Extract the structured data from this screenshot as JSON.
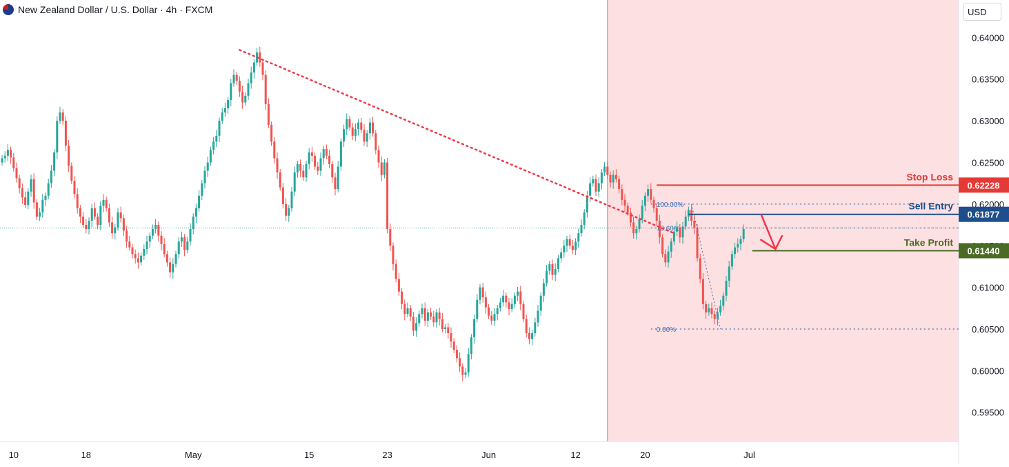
{
  "header": {
    "title": "New Zealand Dollar / U.S. Dollar · 4h · FXCM",
    "currency": "USD"
  },
  "colors": {
    "up": "#26a69a",
    "down": "#ef5350",
    "stop_loss": "#e53935",
    "sell_entry": "#1e4f8c",
    "take_profit": "#4a6b23",
    "trendline": "#f23645",
    "fib": "#3d6fb5",
    "future_zone": "#fde0e2"
  },
  "chart_data": {
    "type": "candlestick",
    "title": "New Zealand Dollar / U.S. Dollar · 4h · FXCM",
    "xlabel": "",
    "ylabel": "USD",
    "ylim": [
      0.5915,
      0.6445
    ],
    "y_ticks": [
      "0.64000",
      "0.63500",
      "0.63000",
      "0.62500",
      "0.62000",
      "0.61500",
      "0.61000",
      "0.60500",
      "0.60000",
      "0.59500"
    ],
    "x_ticks": [
      {
        "label": "10",
        "bar": 4
      },
      {
        "label": "18",
        "bar": 29
      },
      {
        "label": "May",
        "bar": 66
      },
      {
        "label": "15",
        "bar": 106
      },
      {
        "label": "23",
        "bar": 133
      },
      {
        "label": "Jun",
        "bar": 168
      },
      {
        "label": "12",
        "bar": 198
      },
      {
        "label": "20",
        "bar": 222
      },
      {
        "label": "Jul",
        "bar": 258
      }
    ],
    "closes": [
      0.6255,
      0.6258,
      0.6265,
      0.6256,
      0.6243,
      0.6231,
      0.6219,
      0.6208,
      0.6199,
      0.6215,
      0.623,
      0.6202,
      0.6185,
      0.619,
      0.6205,
      0.621,
      0.6225,
      0.624,
      0.6262,
      0.63,
      0.631,
      0.63,
      0.627,
      0.6246,
      0.6228,
      0.6212,
      0.6195,
      0.6185,
      0.6175,
      0.617,
      0.618,
      0.6195,
      0.6185,
      0.6175,
      0.6198,
      0.6205,
      0.6195,
      0.6178,
      0.6165,
      0.6172,
      0.619,
      0.6183,
      0.6168,
      0.6155,
      0.6148,
      0.614,
      0.6135,
      0.613,
      0.6138,
      0.6146,
      0.6155,
      0.6162,
      0.617,
      0.6175,
      0.6162,
      0.6152,
      0.614,
      0.613,
      0.6118,
      0.6128,
      0.614,
      0.6155,
      0.616,
      0.6145,
      0.6155,
      0.617,
      0.6185,
      0.6195,
      0.621,
      0.6225,
      0.624,
      0.625,
      0.6265,
      0.6275,
      0.6282,
      0.63,
      0.631,
      0.6315,
      0.6325,
      0.6345,
      0.6355,
      0.6348,
      0.6335,
      0.6322,
      0.633,
      0.6345,
      0.6358,
      0.637,
      0.6382,
      0.637,
      0.6355,
      0.632,
      0.6295,
      0.6275,
      0.6255,
      0.6238,
      0.622,
      0.62,
      0.6186,
      0.6195,
      0.6215,
      0.6238,
      0.6248,
      0.624,
      0.6232,
      0.6248,
      0.6262,
      0.6258,
      0.6245,
      0.624,
      0.6255,
      0.6266,
      0.6258,
      0.6248,
      0.6232,
      0.6218,
      0.6245,
      0.6275,
      0.629,
      0.6302,
      0.6292,
      0.6282,
      0.629,
      0.6298,
      0.6289,
      0.6275,
      0.6285,
      0.6298,
      0.6285,
      0.6265,
      0.625,
      0.6235,
      0.625,
      0.617,
      0.615,
      0.6128,
      0.611,
      0.6095,
      0.608,
      0.6068,
      0.6075,
      0.6065,
      0.6048,
      0.6057,
      0.6068,
      0.6075,
      0.606,
      0.607,
      0.6065,
      0.6058,
      0.607,
      0.6062,
      0.605,
      0.6052,
      0.6045,
      0.6035,
      0.6025,
      0.6015,
      0.6005,
      0.5995,
      0.5998,
      0.602,
      0.604,
      0.6062,
      0.6085,
      0.61,
      0.6088,
      0.6076,
      0.6066,
      0.606,
      0.6068,
      0.6075,
      0.6082,
      0.609,
      0.6082,
      0.6074,
      0.608,
      0.609,
      0.6095,
      0.608,
      0.6062,
      0.6045,
      0.6038,
      0.6045,
      0.6058,
      0.6072,
      0.609,
      0.6105,
      0.612,
      0.6128,
      0.6115,
      0.6122,
      0.6135,
      0.6142,
      0.615,
      0.6158,
      0.615,
      0.6145,
      0.6155,
      0.6165,
      0.6175,
      0.619,
      0.621,
      0.6225,
      0.623,
      0.6215,
      0.6225,
      0.6238,
      0.6245,
      0.6235,
      0.6226,
      0.6235,
      0.623,
      0.6218,
      0.6205,
      0.6198,
      0.619,
      0.6178,
      0.6165,
      0.617,
      0.6182,
      0.6198,
      0.621,
      0.6218,
      0.6205,
      0.6195,
      0.618,
      0.616,
      0.614,
      0.613,
      0.6143,
      0.6155,
      0.6167,
      0.6172,
      0.616,
      0.6173,
      0.6185,
      0.6193,
      0.618,
      0.6172,
      0.6135,
      0.611,
      0.608,
      0.607,
      0.6075,
      0.6068,
      0.6062,
      0.607,
      0.6078,
      0.609,
      0.6108,
      0.6125,
      0.614,
      0.6148,
      0.6152,
      0.6158,
      0.617
    ],
    "highs_max": 0.6384,
    "lows_min": 0.599,
    "trendline": {
      "start": {
        "bar": 82,
        "price": 0.6385
      },
      "end": {
        "bar": 232,
        "price": 0.6165
      }
    },
    "fibonacci": {
      "levels": [
        {
          "label": "100.00%",
          "price": 0.62
        },
        {
          "label": "78.60%",
          "price": 0.61713
        },
        {
          "label": "0.00%",
          "price": 0.605
        }
      ]
    },
    "price_lines": [
      {
        "label": "Stop Loss",
        "value": "0.62228",
        "price": 0.62228,
        "start_bar": 182
      },
      {
        "label": "Sell Entry",
        "value": "0.61877",
        "price": 0.61877,
        "start_bar": 192
      },
      {
        "label": "Take Profit",
        "value": "0.61440",
        "price": 0.6144,
        "start_bar": 208
      }
    ],
    "current_price_level": 0.61713,
    "future_zone_start_bar": 209
  }
}
